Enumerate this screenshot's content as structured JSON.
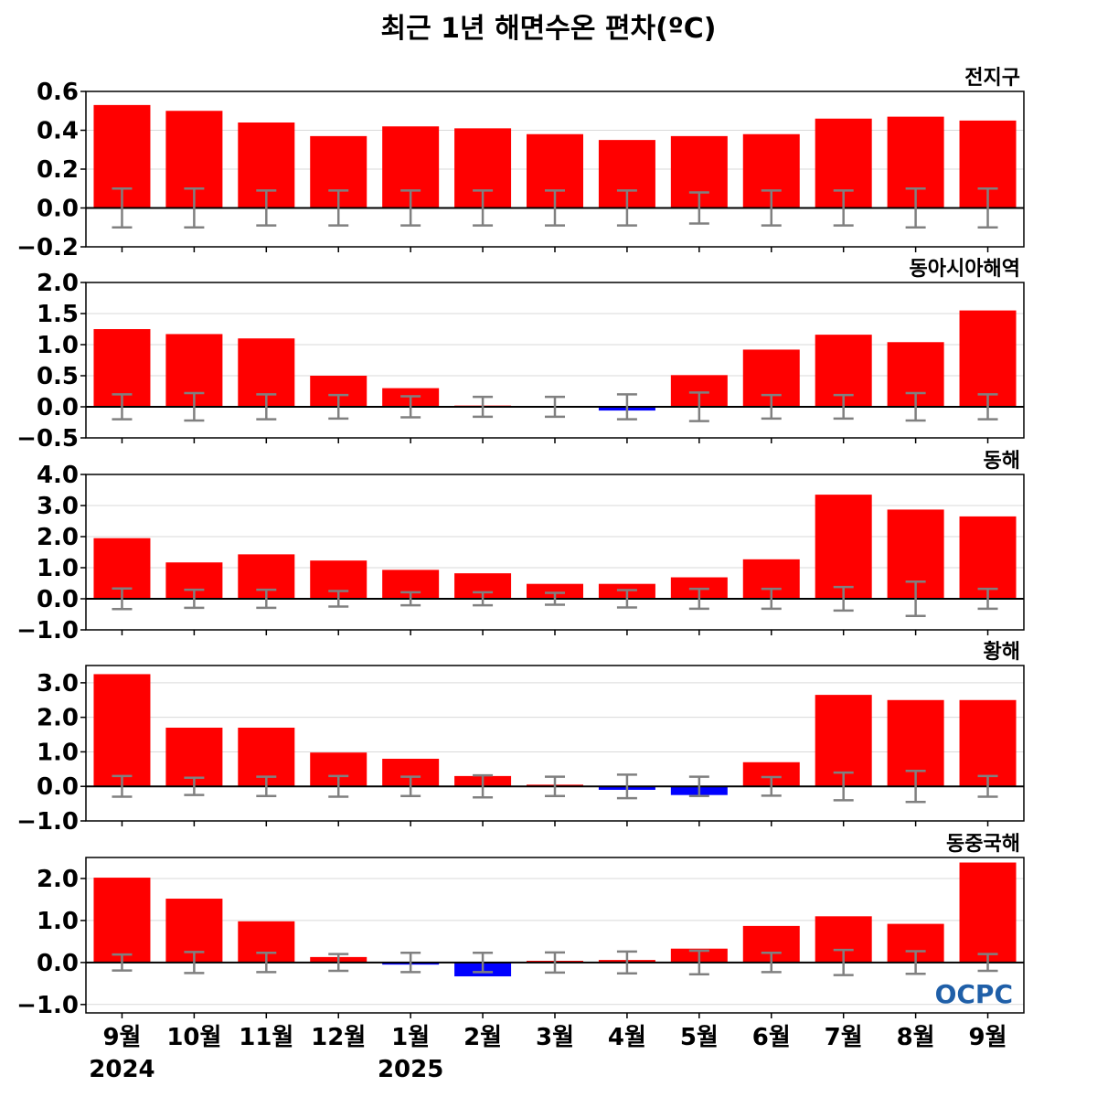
{
  "title": "최근 1년 해면수온 편차(ºC)",
  "logo": "OCPC",
  "colors": {
    "positive": "#ff0000",
    "negative": "#0000ff",
    "error": "#808080",
    "grid": "#d9d9d9",
    "zero": "#000000"
  },
  "chart_data": {
    "type": "bar",
    "categories": [
      "9월",
      "10월",
      "11월",
      "12월",
      "1월",
      "2월",
      "3월",
      "4월",
      "5월",
      "6월",
      "7월",
      "8월",
      "9월"
    ],
    "year_labels": [
      {
        "index": 0,
        "label": "2024"
      },
      {
        "index": 4,
        "label": "2025"
      }
    ],
    "panels": [
      {
        "name": "전지구",
        "ylim": [
          -0.2,
          0.6
        ],
        "ticks": [
          -0.2,
          0.0,
          0.2,
          0.4,
          0.6
        ],
        "tick_labels": [
          "−0.2",
          "0.0",
          "0.2",
          "0.4",
          "0.6"
        ],
        "values": [
          0.53,
          0.5,
          0.44,
          0.37,
          0.42,
          0.41,
          0.38,
          0.35,
          0.37,
          0.38,
          0.46,
          0.47,
          0.45
        ],
        "error": [
          0.1,
          0.1,
          0.09,
          0.09,
          0.09,
          0.09,
          0.09,
          0.09,
          0.08,
          0.09,
          0.09,
          0.1,
          0.1
        ]
      },
      {
        "name": "동아시아해역",
        "ylim": [
          -0.5,
          2.0
        ],
        "ticks": [
          -0.5,
          0.0,
          0.5,
          1.0,
          1.5,
          2.0
        ],
        "tick_labels": [
          "−0.5",
          "0.0",
          "0.5",
          "1.0",
          "1.5",
          "2.0"
        ],
        "values": [
          1.25,
          1.17,
          1.1,
          0.5,
          0.3,
          0.02,
          0.01,
          -0.06,
          0.51,
          0.92,
          1.16,
          1.04,
          1.55
        ],
        "error": [
          0.2,
          0.22,
          0.2,
          0.19,
          0.17,
          0.16,
          0.16,
          0.2,
          0.23,
          0.19,
          0.19,
          0.22,
          0.2
        ]
      },
      {
        "name": "동해",
        "ylim": [
          -1.0,
          4.0
        ],
        "ticks": [
          -1.0,
          0.0,
          1.0,
          2.0,
          3.0,
          4.0
        ],
        "tick_labels": [
          "−1.0",
          "0.0",
          "1.0",
          "2.0",
          "3.0",
          "4.0"
        ],
        "values": [
          1.95,
          1.17,
          1.43,
          1.23,
          0.93,
          0.82,
          0.48,
          0.48,
          0.69,
          1.27,
          3.35,
          2.87,
          2.65
        ],
        "error": [
          0.33,
          0.29,
          0.29,
          0.25,
          0.21,
          0.21,
          0.19,
          0.28,
          0.32,
          0.32,
          0.38,
          0.55,
          0.32
        ]
      },
      {
        "name": "황해",
        "ylim": [
          -1.0,
          3.5
        ],
        "ticks": [
          -1.0,
          0.0,
          1.0,
          2.0,
          3.0
        ],
        "tick_labels": [
          "−1.0",
          "0.0",
          "1.0",
          "2.0",
          "3.0"
        ],
        "values": [
          3.25,
          1.7,
          1.7,
          0.98,
          0.8,
          0.3,
          0.05,
          -0.1,
          -0.25,
          0.7,
          2.65,
          2.5,
          2.5
        ],
        "error": [
          0.3,
          0.25,
          0.28,
          0.3,
          0.28,
          0.32,
          0.28,
          0.34,
          0.28,
          0.27,
          0.4,
          0.45,
          0.3
        ]
      },
      {
        "name": "동중국해",
        "ylim": [
          -1.2,
          2.5
        ],
        "ticks": [
          -1.0,
          0.0,
          1.0,
          2.0
        ],
        "tick_labels": [
          "−1.0",
          "0.0",
          "1.0",
          "2.0"
        ],
        "values": [
          2.02,
          1.52,
          0.98,
          0.13,
          -0.05,
          -0.33,
          0.04,
          0.06,
          0.33,
          0.87,
          1.1,
          0.92,
          2.38
        ],
        "error": [
          0.19,
          0.25,
          0.23,
          0.2,
          0.23,
          0.23,
          0.24,
          0.26,
          0.28,
          0.23,
          0.3,
          0.27,
          0.2
        ]
      }
    ]
  }
}
